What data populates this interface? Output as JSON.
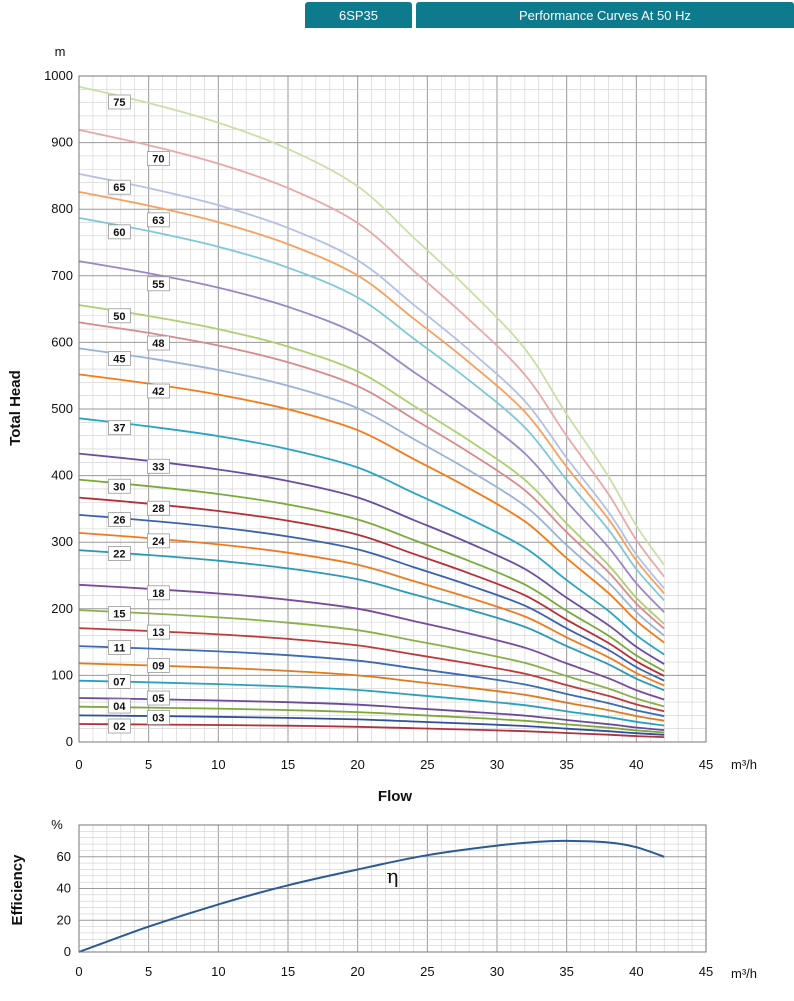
{
  "header": {
    "model": "6SP35",
    "title": "Performance Curves At 50 Hz"
  },
  "chart_data": [
    {
      "type": "line",
      "ylabel": "Total Head",
      "yunit": "m",
      "xlabel": "Flow",
      "xunit": "m³/h",
      "xlim": [
        0,
        45
      ],
      "ylim": [
        0,
        1000
      ],
      "xticks": [
        0,
        5,
        10,
        15,
        20,
        25,
        30,
        35,
        40,
        45
      ],
      "yticks": [
        0,
        100,
        200,
        300,
        400,
        500,
        600,
        700,
        800,
        900,
        1000
      ],
      "grid": true,
      "x": [
        0,
        5,
        10,
        15,
        20,
        24,
        28,
        32,
        35,
        38,
        40,
        42
      ],
      "shape": [
        1.0,
        0.975,
        0.945,
        0.905,
        0.848,
        0.77,
        0.69,
        0.6,
        0.5,
        0.405,
        0.33,
        0.27
      ],
      "series": [
        {
          "name": "02",
          "color": "#b0303c",
          "head0": 27
        },
        {
          "name": "03",
          "color": "#2e4f9c",
          "head0": 40
        },
        {
          "name": "04",
          "color": "#7ca83a",
          "head0": 53
        },
        {
          "name": "05",
          "color": "#6a4a9c",
          "head0": 66
        },
        {
          "name": "07",
          "color": "#2aa0c0",
          "head0": 92
        },
        {
          "name": "09",
          "color": "#e07a1f",
          "head0": 118
        },
        {
          "name": "11",
          "color": "#3a6ab8",
          "head0": 144
        },
        {
          "name": "13",
          "color": "#c03a3a",
          "head0": 171
        },
        {
          "name": "15",
          "color": "#8ab04a",
          "head0": 198
        },
        {
          "name": "18",
          "color": "#7a4a9c",
          "head0": 236
        },
        {
          "name": "22",
          "color": "#2a9ab8",
          "head0": 288
        },
        {
          "name": "24",
          "color": "#f07a20",
          "head0": 314
        },
        {
          "name": "26",
          "color": "#3a62b0",
          "head0": 341
        },
        {
          "name": "28",
          "color": "#b82e36",
          "head0": 367
        },
        {
          "name": "30",
          "color": "#7aaa3a",
          "head0": 394
        },
        {
          "name": "33",
          "color": "#6a4ea0",
          "head0": 433
        },
        {
          "name": "37",
          "color": "#28a4c4",
          "head0": 486
        },
        {
          "name": "42",
          "color": "#f57a18",
          "head0": 552
        },
        {
          "name": "45",
          "color": "#9ab2d8",
          "head0": 591
        },
        {
          "name": "48",
          "color": "#d88a8c",
          "head0": 630
        },
        {
          "name": "50",
          "color": "#aecf72",
          "head0": 656
        },
        {
          "name": "55",
          "color": "#9a88c4",
          "head0": 722
        },
        {
          "name": "60",
          "color": "#7ec8d8",
          "head0": 787
        },
        {
          "name": "63",
          "color": "#f8a060",
          "head0": 826
        },
        {
          "name": "65",
          "color": "#b4c0e4",
          "head0": 853
        },
        {
          "name": "70",
          "color": "#e8a8a8",
          "head0": 919
        },
        {
          "name": "75",
          "color": "#c8e0a8",
          "head0": 984
        }
      ],
      "labels": [
        {
          "name": "02",
          "x": 2.9,
          "y": 24
        },
        {
          "name": "03",
          "x": 5.7,
          "y": 37
        },
        {
          "name": "04",
          "x": 2.9,
          "y": 54
        },
        {
          "name": "05",
          "x": 5.7,
          "y": 66
        },
        {
          "name": "07",
          "x": 2.9,
          "y": 91
        },
        {
          "name": "09",
          "x": 5.7,
          "y": 115
        },
        {
          "name": "11",
          "x": 2.9,
          "y": 142
        },
        {
          "name": "13",
          "x": 5.7,
          "y": 165
        },
        {
          "name": "15",
          "x": 2.9,
          "y": 193
        },
        {
          "name": "18",
          "x": 5.7,
          "y": 224
        },
        {
          "name": "22",
          "x": 2.9,
          "y": 283
        },
        {
          "name": "24",
          "x": 5.7,
          "y": 302
        },
        {
          "name": "26",
          "x": 2.9,
          "y": 334
        },
        {
          "name": "28",
          "x": 5.7,
          "y": 351
        },
        {
          "name": "30",
          "x": 2.9,
          "y": 384
        },
        {
          "name": "33",
          "x": 5.7,
          "y": 414
        },
        {
          "name": "37",
          "x": 2.9,
          "y": 472
        },
        {
          "name": "42",
          "x": 5.7,
          "y": 527
        },
        {
          "name": "45",
          "x": 2.9,
          "y": 576
        },
        {
          "name": "48",
          "x": 5.7,
          "y": 599
        },
        {
          "name": "50",
          "x": 2.9,
          "y": 640
        },
        {
          "name": "55",
          "x": 5.7,
          "y": 688
        },
        {
          "name": "60",
          "x": 2.9,
          "y": 766
        },
        {
          "name": "63",
          "x": 5.7,
          "y": 784
        },
        {
          "name": "65",
          "x": 2.9,
          "y": 833
        },
        {
          "name": "70",
          "x": 5.7,
          "y": 876
        },
        {
          "name": "75",
          "x": 2.9,
          "y": 961
        }
      ]
    },
    {
      "type": "line",
      "ylabel": "Efficiency",
      "yunit": "%",
      "xunit": "m³/h",
      "xlim": [
        0,
        45
      ],
      "ylim": [
        0,
        80
      ],
      "xticks": [
        0,
        5,
        10,
        15,
        20,
        25,
        30,
        35,
        40,
        45
      ],
      "yticks": [
        0,
        20,
        40,
        60
      ],
      "grid": true,
      "series": [
        {
          "name": "η",
          "color": "#2c5a94",
          "x": [
            0,
            5,
            10,
            15,
            20,
            25,
            30,
            33,
            35,
            38,
            40,
            42
          ],
          "y": [
            0,
            16,
            30,
            42,
            52,
            61,
            67,
            69.5,
            70,
            69,
            66,
            60
          ]
        }
      ],
      "annotation": {
        "text": "η",
        "x": 22.5,
        "y": 48
      }
    }
  ]
}
